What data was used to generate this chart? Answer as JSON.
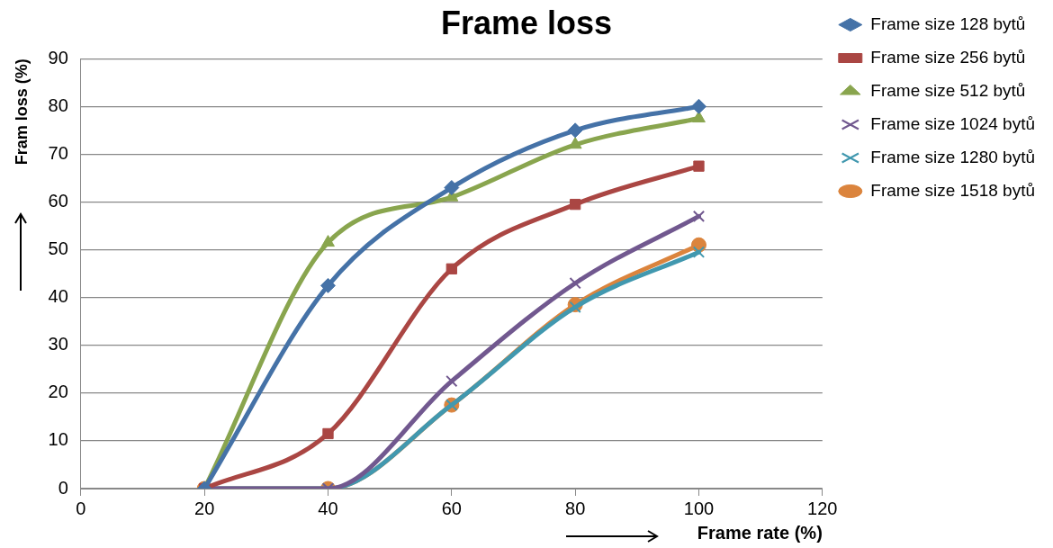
{
  "chart_data": {
    "type": "line",
    "title": "Frame loss",
    "xlabel": "Frame rate (%)",
    "ylabel": "Fram loss (%)",
    "x": [
      20,
      40,
      60,
      80,
      100
    ],
    "series": [
      {
        "name": "Frame size 128 bytů",
        "color": "#4572a7",
        "marker": "diamond",
        "values": [
          0,
          42.5,
          63,
          75,
          80
        ]
      },
      {
        "name": "Frame size 256 bytů",
        "color": "#aa4643",
        "marker": "square",
        "values": [
          0,
          11.5,
          46,
          59.5,
          67.5
        ]
      },
      {
        "name": "Frame size 512 bytů",
        "color": "#89a54e",
        "marker": "triangle",
        "values": [
          0,
          51.5,
          61,
          72,
          77.5
        ]
      },
      {
        "name": "Frame size 1024 bytů",
        "color": "#71588f",
        "marker": "cross",
        "values": [
          0,
          0,
          22.5,
          43,
          57
        ]
      },
      {
        "name": "Frame size 1280 bytů",
        "color": "#4198af",
        "marker": "cross",
        "values": [
          0,
          0,
          17.5,
          38,
          49.5
        ]
      },
      {
        "name": "Frame size 1518 bytů",
        "color": "#db843d",
        "marker": "circle",
        "values": [
          0,
          0,
          17.5,
          38.5,
          51
        ]
      }
    ],
    "xlim": [
      0,
      120
    ],
    "xticks": [
      0,
      20,
      40,
      60,
      80,
      100,
      120
    ],
    "ylim": [
      0,
      90
    ],
    "yticks": [
      0,
      10,
      20,
      30,
      40,
      50,
      60,
      70,
      80,
      90
    ],
    "grid": "y",
    "legend": "right"
  }
}
